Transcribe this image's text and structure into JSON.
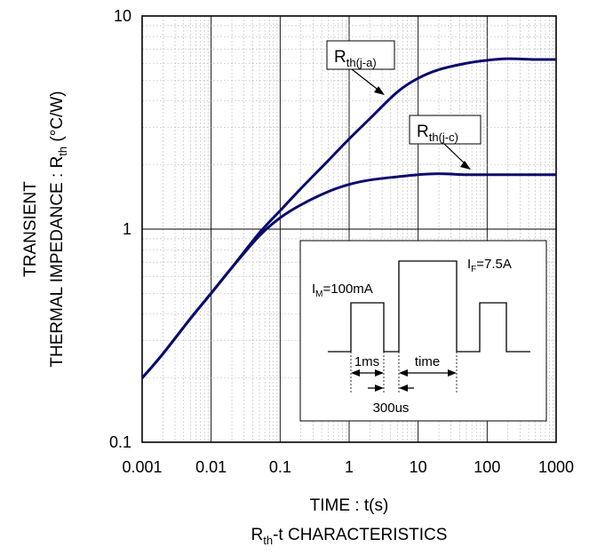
{
  "chart_data": {
    "type": "line",
    "x_scale": "log",
    "y_scale": "log",
    "xlim": [
      0.001,
      1000
    ],
    "ylim": [
      0.1,
      10
    ],
    "x_ticks": [
      "0.001",
      "0.01",
      "0.1",
      "1",
      "10",
      "100",
      "1000"
    ],
    "y_ticks": [
      "0.1",
      "1",
      "10"
    ],
    "xlabel": "TIME : t(s)",
    "ylabel": {
      "line1": "TRANSIENT",
      "line2_prefix": "THERMAL IMPEDANCE : R",
      "line2_sub": "th",
      "line2_suffix": " (°C/W)"
    },
    "title": {
      "prefix": "R",
      "sub": "th",
      "suffix": "-t CHARACTERISTICS"
    },
    "grid": true,
    "line_color": "#0a0a6e",
    "series": [
      {
        "name": "Rth(j-a)",
        "label_main": "R",
        "label_sub": "th(j-a)",
        "x": [
          0.001,
          0.002,
          0.005,
          0.01,
          0.02,
          0.05,
          0.1,
          0.2,
          0.5,
          1,
          2,
          5,
          10,
          20,
          50,
          100,
          200,
          500,
          1000
        ],
        "y": [
          0.2,
          0.26,
          0.38,
          0.5,
          0.66,
          0.96,
          1.22,
          1.55,
          2.1,
          2.65,
          3.3,
          4.4,
          5.1,
          5.6,
          6.0,
          6.2,
          6.3,
          6.25,
          6.25
        ]
      },
      {
        "name": "Rth(j-c)",
        "label_main": "R",
        "label_sub": "th(j-c)",
        "x": [
          0.001,
          0.002,
          0.005,
          0.01,
          0.02,
          0.05,
          0.1,
          0.2,
          0.5,
          1,
          2,
          5,
          10,
          20,
          50,
          100,
          200,
          500,
          1000
        ],
        "y": [
          0.2,
          0.26,
          0.38,
          0.5,
          0.66,
          0.93,
          1.13,
          1.3,
          1.5,
          1.62,
          1.7,
          1.76,
          1.8,
          1.82,
          1.8,
          1.8,
          1.8,
          1.8,
          1.8
        ]
      }
    ],
    "inset": {
      "im_main": "I",
      "im_sub": "M",
      "im_val": "=100mA",
      "if_main": "I",
      "if_sub": "F",
      "if_val": "=7.5A",
      "t1": "1ms",
      "t2": "time",
      "t3": "300us"
    }
  }
}
